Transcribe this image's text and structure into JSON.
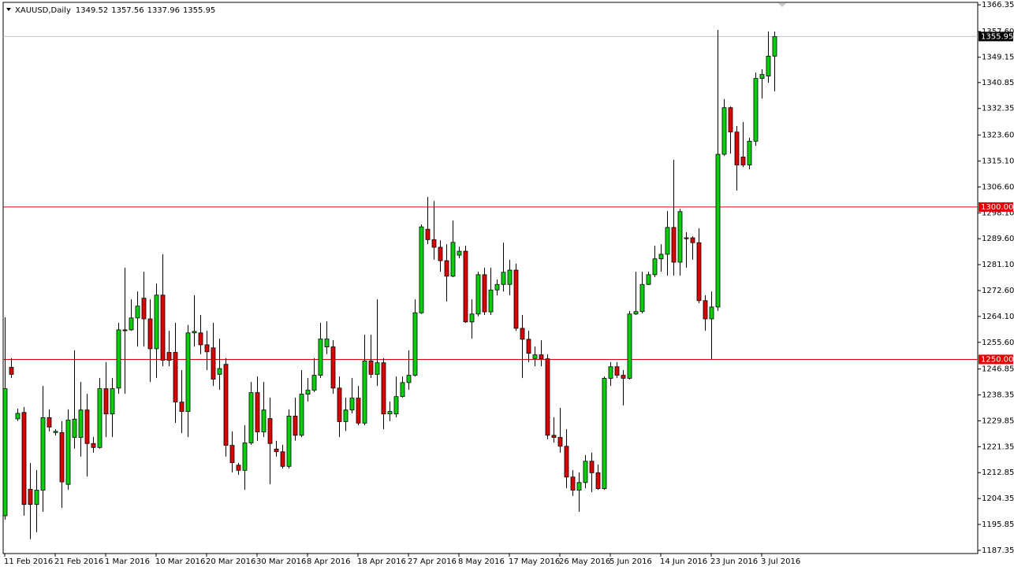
{
  "chart_data": {
    "type": "candlestick",
    "title": "XAUUSD,Daily",
    "categories": [
      "11 Feb 2016",
      null,
      null,
      null,
      null,
      null,
      null,
      null,
      "21 Feb 2016",
      null,
      null,
      null,
      null,
      null,
      null,
      null,
      "1 Mar 2016",
      null,
      null,
      null,
      null,
      null,
      null,
      null,
      "10 Mar 2016",
      null,
      null,
      null,
      null,
      null,
      null,
      null,
      "20 Mar 2016",
      null,
      null,
      null,
      null,
      null,
      null,
      null,
      "30 Mar 2016",
      null,
      null,
      null,
      null,
      null,
      null,
      null,
      "8 Apr 2016",
      null,
      null,
      null,
      null,
      null,
      null,
      null,
      "18 Apr 2016",
      null,
      null,
      null,
      null,
      null,
      null,
      null,
      "27 Apr 2016",
      null,
      null,
      null,
      null,
      null,
      null,
      null,
      "8 May 2016",
      null,
      null,
      null,
      null,
      null,
      null,
      null,
      "17 May 2016",
      null,
      null,
      null,
      null,
      null,
      null,
      null,
      "26 May 2016",
      null,
      null,
      null,
      null,
      null,
      null,
      null,
      "5 Jun 2016",
      null,
      null,
      null,
      null,
      null,
      null,
      null,
      "14 Jun 2016",
      null,
      null,
      null,
      null,
      null,
      null,
      null,
      "23 Jun 2016",
      null,
      null,
      null,
      null,
      null,
      null,
      null,
      "3 Jul 2016",
      null,
      null
    ],
    "open": [
      1198.7,
      1247.4,
      1230.5,
      1232.6,
      1207.4,
      1202.4,
      1207.1,
      1230.9,
      1226.0,
      1226.0,
      1209.0,
      1224.4,
      1224.4,
      1233.4,
      1222.4,
      1221.1,
      1240.4,
      1232.1,
      1240.6,
      1259.7,
      1259.7,
      1263.6,
      1270.1,
      1263.3,
      1253.5,
      1271.1,
      1252.3,
      1252.3,
      1236.0,
      1232.9,
      1258.7,
      1258.7,
      1254.8,
      1253.8,
      1245.1,
      1248.4,
      1221.8,
      1215.3,
      1213.6,
      1222.6,
      1239.1,
      1226.2,
      1230.6,
      1220.6,
      1219.7,
      1214.9,
      1231.4,
      1225.1,
      1238.6,
      1239.9,
      1244.8,
      1254.1,
      1254.1,
      1240.6,
      1229.6,
      1233.4,
      1237.3,
      1229.1,
      1249.5,
      1245.1,
      1248.9,
      1232.1,
      1232.1,
      1237.8,
      1242.4,
      1244.8,
      1265.3,
      1292.7,
      1289.3,
      1286.8,
      1282.4,
      1277.3,
      1284.2,
      1285.5,
      1262.3,
      1264.9,
      1277.8,
      1265.6,
      1272.8,
      1274.6,
      1274.6,
      1279.3,
      1260.2,
      1256.6,
      1250.3,
      1251.5,
      1250.2,
      1225.1,
      1224.4,
      1221.5,
      1211.4,
      1207.1,
      1209.6,
      1216.6,
      1212.8,
      1207.6,
      1243.8,
      1247.6,
      1244.8,
      1243.8,
      1264.9,
      1265.7,
      1274.6,
      1277.8,
      1283.0,
      1284.5,
      1293.3,
      1281.9,
      1289.9,
      1289.9,
      1288.3,
      1269.3,
      1263.3,
      1267.2,
      1317.3,
      1332.6,
      1324.6,
      1316.4,
      1313.8,
      1321.6,
      1342.2,
      1343.0,
      1349.52
    ],
    "high": [
      1263.8,
      1250.4,
      1233.8,
      1234.4,
      1216.0,
      1213.7,
      1241.3,
      1233.6,
      1227.1,
      1229.7,
      1233.6,
      1253.0,
      1242.6,
      1238.7,
      1224.5,
      1243.9,
      1249.1,
      1243.9,
      1262.0,
      1280.1,
      1269.7,
      1272.3,
      1278.8,
      1269.7,
      1274.9,
      1284.5,
      1259.4,
      1262.0,
      1246.5,
      1261.3,
      1271.0,
      1264.6,
      1259.4,
      1262.0,
      1256.8,
      1250.4,
      1226.4,
      1216.0,
      1228.4,
      1242.6,
      1244.4,
      1242.6,
      1237.5,
      1223.3,
      1222.0,
      1233.6,
      1237.5,
      1246.5,
      1243.9,
      1250.4,
      1262.0,
      1262.5,
      1256.3,
      1244.4,
      1237.5,
      1243.9,
      1241.3,
      1258.1,
      1258.1,
      1269.7,
      1250.4,
      1236.2,
      1244.4,
      1244.4,
      1253.0,
      1269.7,
      1294.3,
      1303.3,
      1302.0,
      1289.1,
      1287.8,
      1295.6,
      1287.0,
      1287.3,
      1269.7,
      1278.8,
      1280.1,
      1280.1,
      1276.2,
      1288.3,
      1282.7,
      1281.4,
      1264.6,
      1259.4,
      1254.2,
      1256.3,
      1251.7,
      1231.0,
      1234.1,
      1227.1,
      1213.7,
      1212.9,
      1218.6,
      1219.4,
      1215.5,
      1244.4,
      1249.1,
      1249.1,
      1246.5,
      1265.9,
      1278.8,
      1278.8,
      1278.8,
      1287.3,
      1287.8,
      1298.7,
      1315.5,
      1299.4,
      1291.7,
      1290.4,
      1293.0,
      1271.0,
      1272.3,
      1358.1,
      1335.4,
      1333.0,
      1326.6,
      1327.9,
      1322.7,
      1344.1,
      1345.2,
      1357.6,
      1357.56
    ],
    "low": [
      1197.4,
      1243.9,
      1229.8,
      1198.7,
      1191.0,
      1193.3,
      1200.0,
      1226.4,
      1225.1,
      1201.3,
      1207.2,
      1220.7,
      1218.1,
      1211.6,
      1219.4,
      1220.7,
      1224.5,
      1224.5,
      1238.7,
      1238.7,
      1259.4,
      1254.2,
      1254.2,
      1242.6,
      1243.9,
      1247.8,
      1247.8,
      1229.2,
      1225.8,
      1224.5,
      1254.2,
      1251.7,
      1246.5,
      1241.3,
      1240.0,
      1218.1,
      1212.9,
      1212.1,
      1207.2,
      1222.0,
      1223.3,
      1224.5,
      1209.0,
      1218.1,
      1214.2,
      1214.2,
      1223.3,
      1224.5,
      1236.2,
      1239.3,
      1243.9,
      1251.7,
      1238.7,
      1224.5,
      1226.5,
      1232.3,
      1228.4,
      1228.4,
      1243.9,
      1241.3,
      1227.1,
      1229.7,
      1231.0,
      1237.5,
      1240.0,
      1244.4,
      1264.9,
      1287.8,
      1282.7,
      1278.8,
      1269.0,
      1277.0,
      1283.2,
      1262.0,
      1256.8,
      1264.1,
      1264.6,
      1264.6,
      1271.0,
      1272.3,
      1271.0,
      1259.4,
      1243.9,
      1249.1,
      1247.8,
      1247.8,
      1223.8,
      1222.7,
      1219.4,
      1207.7,
      1205.2,
      1200.0,
      1207.7,
      1206.5,
      1207.2,
      1207.2,
      1241.3,
      1243.9,
      1234.9,
      1243.4,
      1264.6,
      1265.1,
      1274.4,
      1277.0,
      1278.8,
      1277.5,
      1277.5,
      1277.5,
      1280.1,
      1282.7,
      1268.5,
      1259.4,
      1250.1,
      1265.9,
      1316.8,
      1317.5,
      1305.4,
      1313.1,
      1312.4,
      1320.1,
      1335.6,
      1340.8,
      1337.96
    ],
    "close": [
      1240.4,
      1245.1,
      1232.3,
      1202.4,
      1202.4,
      1207.1,
      1230.9,
      1227.8,
      1226.4,
      1209.8,
      1230.1,
      1230.4,
      1233.4,
      1222.4,
      1221.1,
      1240.4,
      1232.1,
      1240.4,
      1259.7,
      1259.4,
      1263.6,
      1267.5,
      1263.3,
      1253.5,
      1271.1,
      1249.7,
      1249.7,
      1236.0,
      1232.9,
      1258.7,
      1259.2,
      1254.8,
      1252.5,
      1243.5,
      1247.0,
      1221.8,
      1216.1,
      1213.6,
      1222.6,
      1239.1,
      1226.2,
      1233.4,
      1222.4,
      1219.7,
      1214.9,
      1231.4,
      1225.1,
      1238.6,
      1239.9,
      1244.8,
      1256.7,
      1256.7,
      1240.6,
      1229.6,
      1233.4,
      1237.3,
      1229.1,
      1249.5,
      1245.1,
      1248.9,
      1232.1,
      1232.9,
      1237.8,
      1242.4,
      1244.8,
      1265.3,
      1293.5,
      1289.3,
      1286.8,
      1282.4,
      1277.3,
      1288.4,
      1285.5,
      1262.3,
      1264.9,
      1277.8,
      1265.6,
      1272.8,
      1274.6,
      1278.6,
      1279.3,
      1260.2,
      1256.6,
      1252.0,
      1251.5,
      1250.2,
      1225.1,
      1224.4,
      1221.5,
      1211.4,
      1207.1,
      1209.6,
      1216.6,
      1212.8,
      1207.6,
      1243.8,
      1247.6,
      1244.8,
      1243.8,
      1264.9,
      1265.7,
      1274.6,
      1277.8,
      1283.0,
      1284.5,
      1293.3,
      1281.9,
      1298.5,
      1289.6,
      1288.3,
      1269.3,
      1263.3,
      1267.2,
      1317.3,
      1332.6,
      1324.6,
      1313.8,
      1313.8,
      1321.6,
      1342.2,
      1343.5,
      1349.5,
      1355.95
    ],
    "up_color": "#00d400",
    "down_color": "#e00000",
    "ylim": [
      1186.3,
      1366.9
    ],
    "yticks": [
      {
        "value": 1366.35,
        "label": "1366.35"
      },
      {
        "value": 1357.6,
        "label": "1357.60"
      },
      {
        "value": 1349.15,
        "label": "1349.15"
      },
      {
        "value": 1340.85,
        "label": "1340.85"
      },
      {
        "value": 1332.35,
        "label": "1332.35"
      },
      {
        "value": 1323.6,
        "label": "1323.60"
      },
      {
        "value": 1315.1,
        "label": "1315.10"
      },
      {
        "value": 1306.6,
        "label": "1306.60"
      },
      {
        "value": 1298.1,
        "label": "1298.10"
      },
      {
        "value": 1289.6,
        "label": "1289.60"
      },
      {
        "value": 1281.1,
        "label": "1281.10"
      },
      {
        "value": 1272.6,
        "label": "1272.60"
      },
      {
        "value": 1264.1,
        "label": "1264.10"
      },
      {
        "value": 1255.6,
        "label": "1255.60"
      },
      {
        "value": 1246.85,
        "label": "1246.85"
      },
      {
        "value": 1238.35,
        "label": "1238.35"
      },
      {
        "value": 1229.85,
        "label": "1229.85"
      },
      {
        "value": 1221.35,
        "label": "1221.35"
      },
      {
        "value": 1212.85,
        "label": "1212.85"
      },
      {
        "value": 1204.35,
        "label": "1204.35"
      },
      {
        "value": 1195.85,
        "label": "1195.85"
      },
      {
        "value": 1187.35,
        "label": "1187.35"
      }
    ],
    "levels": [
      {
        "value": 1300,
        "label": "1300.00",
        "color": "#e00000"
      },
      {
        "value": 1250,
        "label": "1250.00",
        "color": "#e00000"
      }
    ],
    "price_line_color": "#c0c0c0"
  }
}
